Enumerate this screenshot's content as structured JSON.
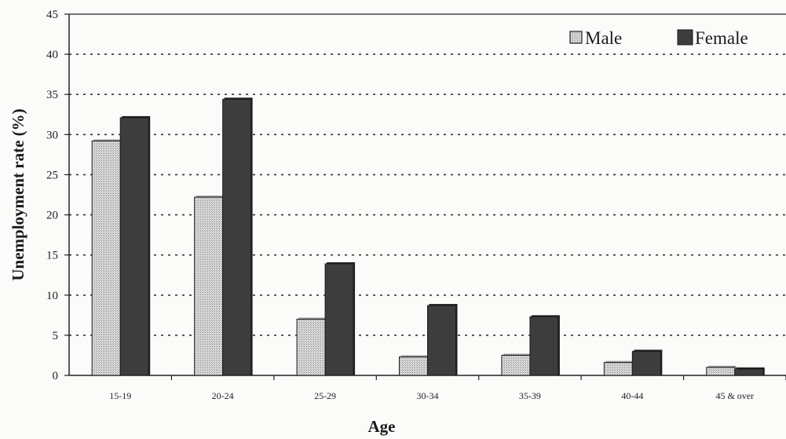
{
  "chart_data": {
    "type": "bar",
    "title": "",
    "xlabel": "Age",
    "ylabel": "Unemployment rate (%)",
    "categories": [
      "15-19",
      "20-24",
      "25-29",
      "30-34",
      "35-39",
      "40-44",
      "45 & over"
    ],
    "series": [
      {
        "name": "Male",
        "values": [
          29.2,
          22.2,
          7.0,
          2.3,
          2.5,
          1.6,
          1.0
        ],
        "color": "#c9c9c9"
      },
      {
        "name": "Female",
        "values": [
          32.1,
          34.4,
          13.9,
          8.7,
          7.3,
          3.0,
          0.8
        ],
        "color": "#3d3d3d"
      }
    ],
    "ylim": [
      0,
      45
    ],
    "yticks": [
      0,
      5,
      10,
      15,
      20,
      25,
      30,
      35,
      40,
      45
    ],
    "grid": true,
    "legend_position": "top-right"
  }
}
